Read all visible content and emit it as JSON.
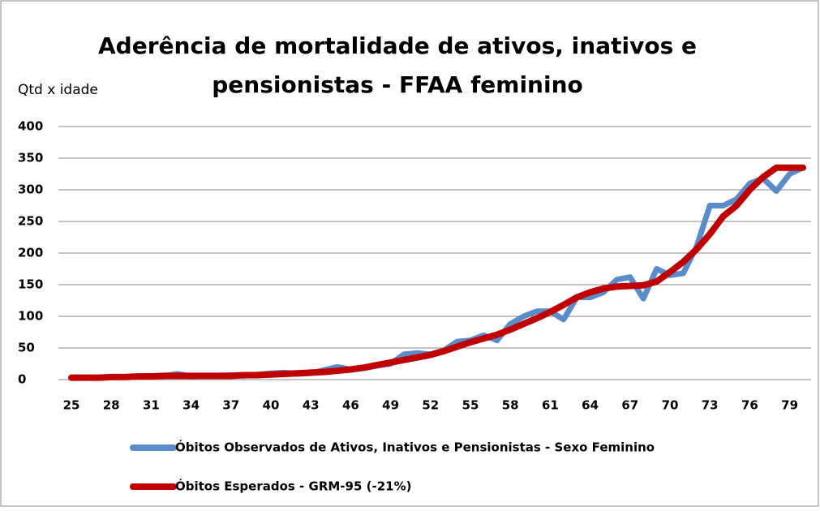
{
  "chart_data": {
    "type": "line",
    "title": "Aderência de mortalidade de ativos, inativos e",
    "title_line2": "pensionistas - FFAA feminino",
    "y_label": "Qtd x idade",
    "categories": [
      "25",
      null,
      null,
      "28",
      null,
      null,
      "31",
      null,
      null,
      "34",
      null,
      null,
      "37",
      null,
      null,
      "40",
      null,
      null,
      "43",
      null,
      null,
      "46",
      null,
      null,
      "49",
      null,
      null,
      "52",
      null,
      null,
      "55",
      null,
      null,
      "58",
      null,
      null,
      "61",
      null,
      null,
      "64",
      null,
      null,
      "67",
      null,
      null,
      "70",
      null,
      null,
      "73",
      null,
      null,
      "76",
      null,
      null,
      "79",
      null
    ],
    "series": [
      {
        "name": "Óbitos Observados de Ativos, Inativos e Pensionistas - Sexo Feminino",
        "color": "#5a8ccc",
        "values": [
          3,
          3,
          3,
          4,
          4,
          5,
          6,
          6,
          9,
          5,
          6,
          6,
          7,
          6,
          8,
          10,
          11,
          9,
          10,
          15,
          20,
          16,
          18,
          22,
          25,
          40,
          42,
          40,
          46,
          60,
          62,
          70,
          62,
          88,
          100,
          108,
          108,
          95,
          130,
          130,
          138,
          158,
          162,
          128,
          175,
          165,
          168,
          210,
          275,
          275,
          285,
          310,
          318,
          298,
          325,
          335
        ]
      },
      {
        "name": "Óbitos Esperados - GRM-95 (-21%)",
        "color": "#c00000",
        "values": [
          3,
          3,
          3,
          4,
          4,
          5,
          5,
          6,
          6,
          6,
          6,
          6,
          6,
          7,
          7,
          8,
          9,
          10,
          11,
          12,
          14,
          16,
          19,
          23,
          27,
          31,
          35,
          39,
          45,
          52,
          59,
          65,
          71,
          79,
          88,
          97,
          107,
          118,
          130,
          138,
          144,
          147,
          148,
          149,
          155,
          170,
          186,
          206,
          230,
          258,
          275,
          300,
          320,
          335,
          335,
          335
        ]
      }
    ],
    "ylim": [
      0,
      400
    ],
    "yticks": [
      0,
      50,
      100,
      150,
      200,
      250,
      300,
      350,
      400
    ],
    "grid": true
  }
}
